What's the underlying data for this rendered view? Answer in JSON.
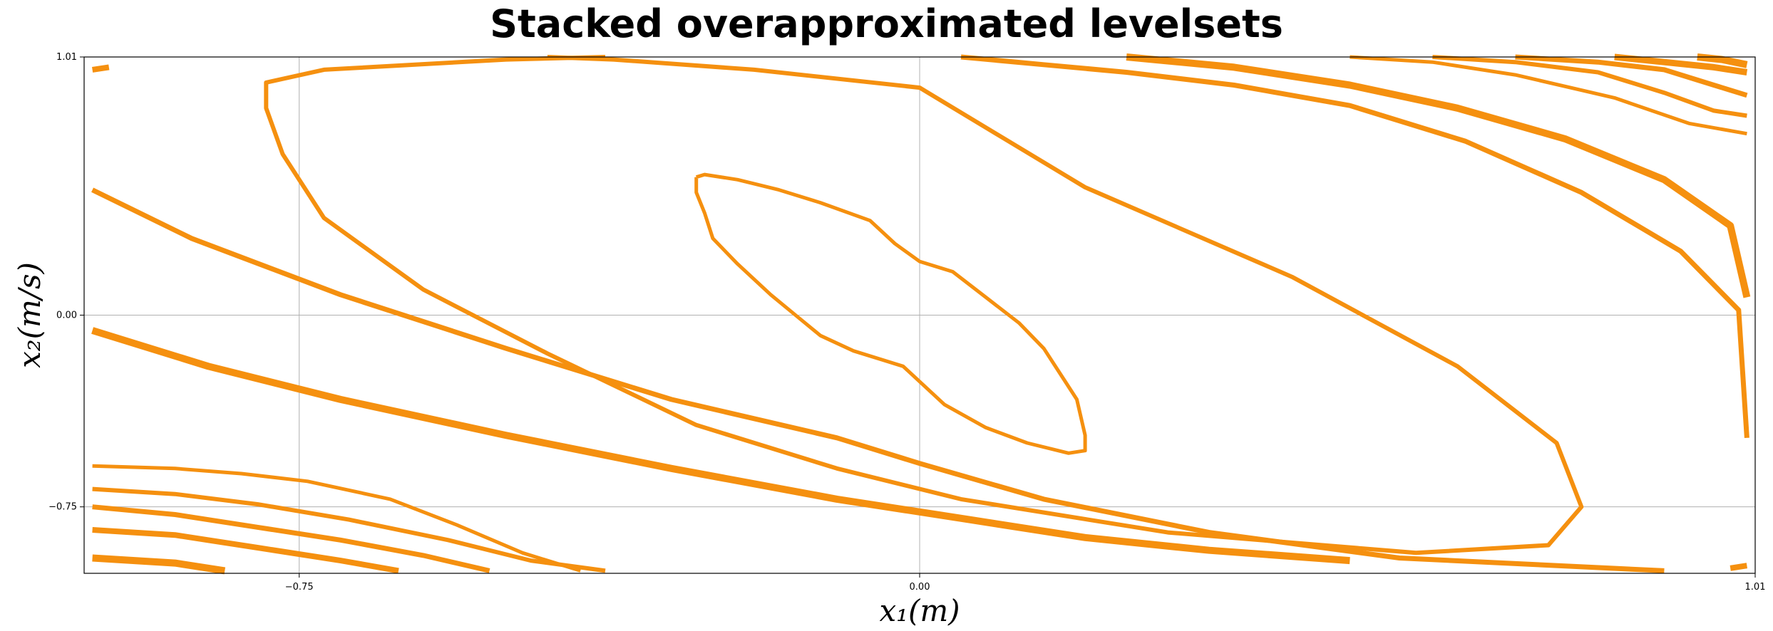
{
  "chart_data": {
    "type": "line",
    "title": "Stacked overapproximated levelsets",
    "xlabel": "x₁(m)",
    "ylabel": "x₂(m/s)",
    "xlim": [
      -1.01,
      1.01
    ],
    "ylim": [
      -1.01,
      1.01
    ],
    "xticks": [
      -0.75,
      0.0,
      1.01
    ],
    "xtick_labels": [
      "−0.75",
      "0.00",
      "1.01"
    ],
    "yticks": [
      1.01,
      0.0,
      -0.75
    ],
    "ytick_labels": [
      "1.01",
      "0.00",
      "−0.75"
    ],
    "grid": true,
    "line_color": "#F5900F",
    "series": [
      {
        "width": 5,
        "points": [
          [
            -0.27,
            0.54
          ],
          [
            -0.26,
            0.55
          ],
          [
            -0.22,
            0.53
          ],
          [
            -0.17,
            0.49
          ],
          [
            -0.12,
            0.44
          ],
          [
            -0.06,
            0.37
          ],
          [
            -0.03,
            0.28
          ],
          [
            0.0,
            0.21
          ],
          [
            0.04,
            0.17
          ],
          [
            0.08,
            0.07
          ],
          [
            0.12,
            -0.03
          ],
          [
            0.15,
            -0.13
          ],
          [
            0.17,
            -0.23
          ],
          [
            0.19,
            -0.33
          ],
          [
            0.2,
            -0.47
          ],
          [
            0.2,
            -0.53
          ],
          [
            0.18,
            -0.54
          ],
          [
            0.13,
            -0.5
          ],
          [
            0.08,
            -0.44
          ],
          [
            0.03,
            -0.35
          ],
          [
            -0.02,
            -0.2
          ],
          [
            -0.08,
            -0.14
          ],
          [
            -0.12,
            -0.08
          ],
          [
            -0.15,
            0.0
          ],
          [
            -0.18,
            0.08
          ],
          [
            -0.22,
            0.2
          ],
          [
            -0.25,
            0.3
          ],
          [
            -0.26,
            0.4
          ],
          [
            -0.27,
            0.48
          ],
          [
            -0.27,
            0.54
          ]
        ]
      },
      {
        "width": 6,
        "points": [
          [
            -0.38,
            1.01
          ],
          [
            -0.5,
            1.0
          ],
          [
            -0.72,
            0.96
          ],
          [
            -0.79,
            0.91
          ],
          [
            -0.79,
            0.81
          ],
          [
            -0.77,
            0.63
          ],
          [
            -0.72,
            0.38
          ],
          [
            -0.6,
            0.1
          ],
          [
            -0.45,
            -0.15
          ],
          [
            -0.27,
            -0.43
          ],
          [
            -0.1,
            -0.6
          ],
          [
            0.05,
            -0.72
          ],
          [
            0.3,
            -0.85
          ],
          [
            0.6,
            -0.93
          ],
          [
            0.76,
            -0.9
          ],
          [
            0.8,
            -0.75
          ],
          [
            0.77,
            -0.5
          ],
          [
            0.65,
            -0.2
          ],
          [
            0.45,
            0.15
          ],
          [
            0.2,
            0.5
          ],
          [
            0.0,
            0.89
          ],
          [
            -0.2,
            0.96
          ],
          [
            -0.37,
            1.0
          ],
          [
            -0.45,
            1.01
          ]
        ]
      },
      {
        "width": 7,
        "points": [
          [
            -1.0,
            0.49
          ],
          [
            -0.88,
            0.3
          ],
          [
            -0.7,
            0.08
          ],
          [
            -0.5,
            -0.13
          ],
          [
            -0.3,
            -0.33
          ],
          [
            -0.1,
            -0.48
          ],
          [
            0.0,
            -0.58
          ],
          [
            0.15,
            -0.72
          ],
          [
            0.35,
            -0.85
          ],
          [
            0.58,
            -0.95
          ],
          [
            0.9,
            -1.0
          ]
        ]
      },
      {
        "width": 7,
        "points": [
          [
            0.05,
            1.01
          ],
          [
            0.15,
            0.98
          ],
          [
            0.25,
            0.95
          ],
          [
            0.38,
            0.9
          ],
          [
            0.52,
            0.82
          ],
          [
            0.66,
            0.68
          ],
          [
            0.8,
            0.48
          ],
          [
            0.92,
            0.25
          ],
          [
            0.99,
            0.02
          ],
          [
            1.0,
            -0.48
          ]
        ]
      },
      {
        "width": 10,
        "points": [
          [
            -1.0,
            -0.06
          ],
          [
            -0.86,
            -0.2
          ],
          [
            -0.7,
            -0.33
          ],
          [
            -0.5,
            -0.47
          ],
          [
            -0.3,
            -0.6
          ],
          [
            -0.1,
            -0.72
          ],
          [
            0.06,
            -0.8
          ],
          [
            0.2,
            -0.87
          ],
          [
            0.35,
            -0.92
          ],
          [
            0.52,
            -0.96
          ]
        ]
      },
      {
        "width": 10,
        "points": [
          [
            0.25,
            1.01
          ],
          [
            0.38,
            0.97
          ],
          [
            0.52,
            0.9
          ],
          [
            0.65,
            0.81
          ],
          [
            0.78,
            0.69
          ],
          [
            0.9,
            0.53
          ],
          [
            0.98,
            0.35
          ],
          [
            1.0,
            0.07
          ]
        ]
      },
      {
        "width": 5,
        "points": [
          [
            -1.0,
            -0.59
          ],
          [
            -0.9,
            -0.6
          ],
          [
            -0.82,
            -0.62
          ],
          [
            -0.74,
            -0.65
          ],
          [
            -0.64,
            -0.72
          ],
          [
            -0.56,
            -0.82
          ],
          [
            -0.48,
            -0.93
          ],
          [
            -0.41,
            -1.0
          ]
        ]
      },
      {
        "width": 6,
        "points": [
          [
            -1.0,
            -0.68
          ],
          [
            -0.9,
            -0.7
          ],
          [
            -0.8,
            -0.74
          ],
          [
            -0.69,
            -0.8
          ],
          [
            -0.57,
            -0.88
          ],
          [
            -0.47,
            -0.96
          ],
          [
            -0.38,
            -1.0
          ]
        ]
      },
      {
        "width": 7,
        "points": [
          [
            -1.0,
            -0.75
          ],
          [
            -0.9,
            -0.78
          ],
          [
            -0.8,
            -0.83
          ],
          [
            -0.7,
            -0.88
          ],
          [
            -0.6,
            -0.94
          ],
          [
            -0.52,
            -1.0
          ]
        ]
      },
      {
        "width": 8,
        "points": [
          [
            -1.0,
            -0.84
          ],
          [
            -0.9,
            -0.86
          ],
          [
            -0.8,
            -0.91
          ],
          [
            -0.7,
            -0.96
          ],
          [
            -0.63,
            -1.0
          ]
        ]
      },
      {
        "width": 10,
        "points": [
          [
            -1.0,
            -0.95
          ],
          [
            -0.9,
            -0.97
          ],
          [
            -0.84,
            -1.0
          ]
        ]
      },
      {
        "width": 5,
        "points": [
          [
            0.52,
            1.01
          ],
          [
            0.62,
            0.99
          ],
          [
            0.72,
            0.94
          ],
          [
            0.84,
            0.85
          ],
          [
            0.93,
            0.75
          ],
          [
            1.0,
            0.71
          ]
        ]
      },
      {
        "width": 6,
        "points": [
          [
            0.62,
            1.01
          ],
          [
            0.72,
            0.99
          ],
          [
            0.82,
            0.95
          ],
          [
            0.9,
            0.87
          ],
          [
            0.96,
            0.8
          ],
          [
            1.0,
            0.78
          ]
        ]
      },
      {
        "width": 7,
        "points": [
          [
            0.72,
            1.01
          ],
          [
            0.82,
            0.99
          ],
          [
            0.9,
            0.96
          ],
          [
            0.96,
            0.9
          ],
          [
            1.0,
            0.86
          ]
        ]
      },
      {
        "width": 9,
        "points": [
          [
            0.84,
            1.01
          ],
          [
            0.9,
            0.99
          ],
          [
            0.96,
            0.97
          ],
          [
            1.0,
            0.95
          ]
        ]
      },
      {
        "width": 10,
        "points": [
          [
            0.94,
            1.01
          ],
          [
            0.97,
            1.0
          ],
          [
            1.0,
            0.98
          ]
        ]
      },
      {
        "width": 8,
        "points": [
          [
            -1.0,
            0.96
          ],
          [
            -0.98,
            0.97
          ]
        ]
      },
      {
        "width": 8,
        "points": [
          [
            0.98,
            -0.99
          ],
          [
            1.0,
            -0.98
          ]
        ]
      }
    ]
  }
}
